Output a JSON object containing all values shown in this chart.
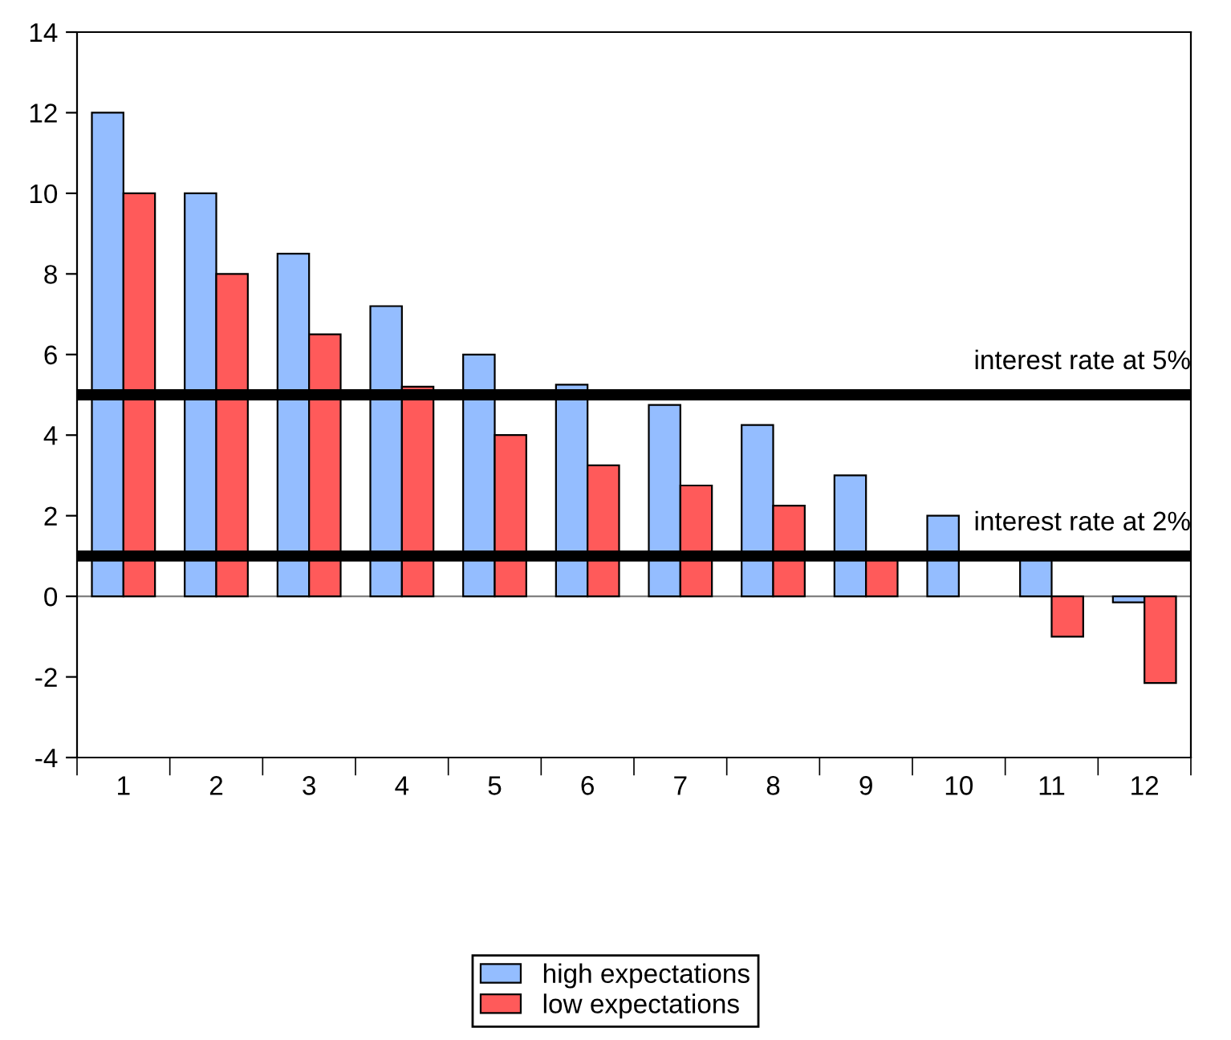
{
  "chart_data": {
    "type": "bar",
    "categories": [
      "1",
      "2",
      "3",
      "4",
      "5",
      "6",
      "7",
      "8",
      "9",
      "10",
      "11",
      "12"
    ],
    "series": [
      {
        "name": "high expectations",
        "color": "#94bdff",
        "values": [
          12,
          10,
          8.5,
          7.2,
          6,
          5.25,
          4.75,
          4.25,
          3,
          2,
          1,
          -0.15
        ]
      },
      {
        "name": "low expectations",
        "color": "#ff5a5a",
        "values": [
          10,
          8,
          6.5,
          5.2,
          4,
          3.25,
          2.75,
          2.25,
          1,
          null,
          -1,
          -2.15
        ]
      }
    ],
    "ylim": [
      -4,
      14
    ],
    "yticks": [
      -4,
      -2,
      0,
      2,
      4,
      6,
      8,
      10,
      12,
      14
    ],
    "ref_lines": [
      {
        "axis": "y",
        "value": 5,
        "label": "interest rate at 5%",
        "color": "#000000"
      },
      {
        "axis": "y",
        "value": 1,
        "label": "interest rate at 2%",
        "color": "#000000"
      },
      {
        "axis": "y",
        "value": 0,
        "color": "#808080"
      }
    ],
    "legend": "bottom",
    "grid": false
  }
}
